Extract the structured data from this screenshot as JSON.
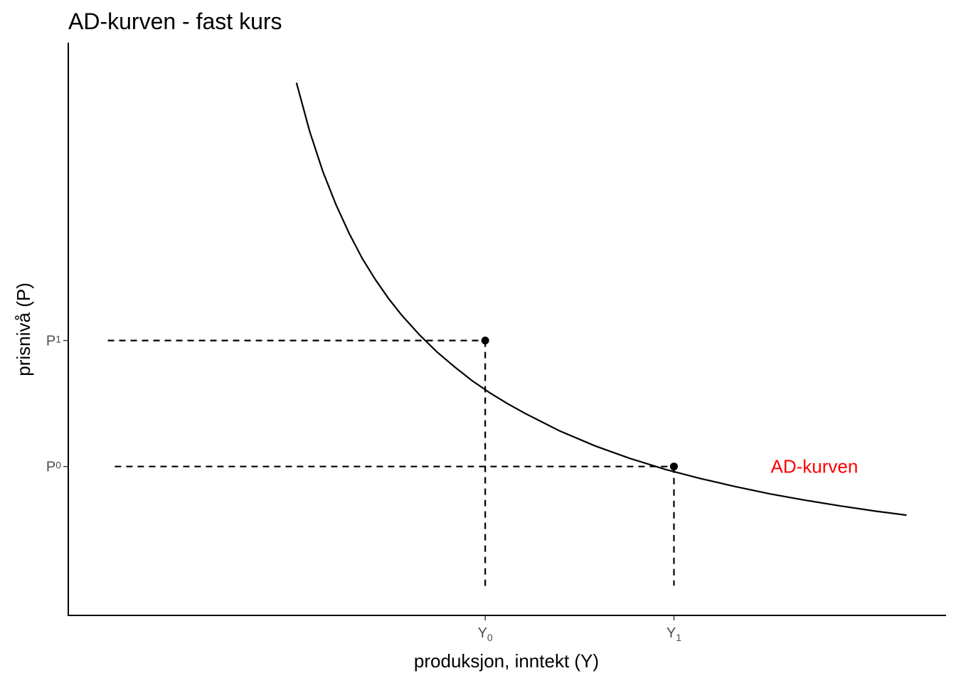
{
  "chart_data": {
    "type": "line",
    "title": "AD-kurven - fast kurs",
    "xlabel": "produksjon, inntekt (Y)",
    "ylabel": "prisnivå (P)",
    "xlim": [
      0,
      10
    ],
    "ylim": [
      0,
      10
    ],
    "grid": false,
    "legend": "none",
    "x_ticks": [
      {
        "base": "Y",
        "sub": "0",
        "value": 4.75
      },
      {
        "base": "Y",
        "sub": "1",
        "value": 6.9
      }
    ],
    "y_ticks": [
      {
        "base": "P",
        "sub": "0",
        "value": 2.6
      },
      {
        "base": "P",
        "sub": "1",
        "value": 4.8
      }
    ],
    "series": [
      {
        "name": "AD-kurven",
        "color": "#ff0000",
        "label_x": 8.5,
        "label_y": 2.6,
        "x": [
          2.6,
          2.75,
          2.9,
          3.05,
          3.2,
          3.35,
          3.5,
          3.65,
          3.8,
          4.0,
          4.2,
          4.4,
          4.6,
          4.8,
          5.0,
          5.2,
          5.6,
          6.0,
          6.4,
          6.8,
          7.2,
          7.6,
          8.0,
          8.4,
          8.8,
          9.2,
          9.55
        ],
        "y": [
          9.3,
          8.45,
          7.75,
          7.17,
          6.67,
          6.23,
          5.86,
          5.53,
          5.24,
          4.9,
          4.6,
          4.34,
          4.1,
          3.89,
          3.7,
          3.53,
          3.22,
          2.96,
          2.74,
          2.55,
          2.39,
          2.25,
          2.12,
          2.01,
          1.91,
          1.82,
          1.75
        ]
      }
    ],
    "points": [
      {
        "x": 4.75,
        "y": 4.8
      },
      {
        "x": 6.9,
        "y": 2.6
      }
    ],
    "guides": {
      "horizontal": [
        {
          "y": 4.8,
          "x_from": 0.45,
          "x_to": 4.75
        },
        {
          "y": 2.6,
          "x_from": 0.53,
          "x_to": 6.9
        }
      ],
      "vertical": [
        {
          "x": 4.75,
          "y_from": 0.45,
          "y_to": 4.8
        },
        {
          "x": 6.9,
          "y_from": 0.52,
          "y_to": 2.6
        }
      ]
    }
  }
}
